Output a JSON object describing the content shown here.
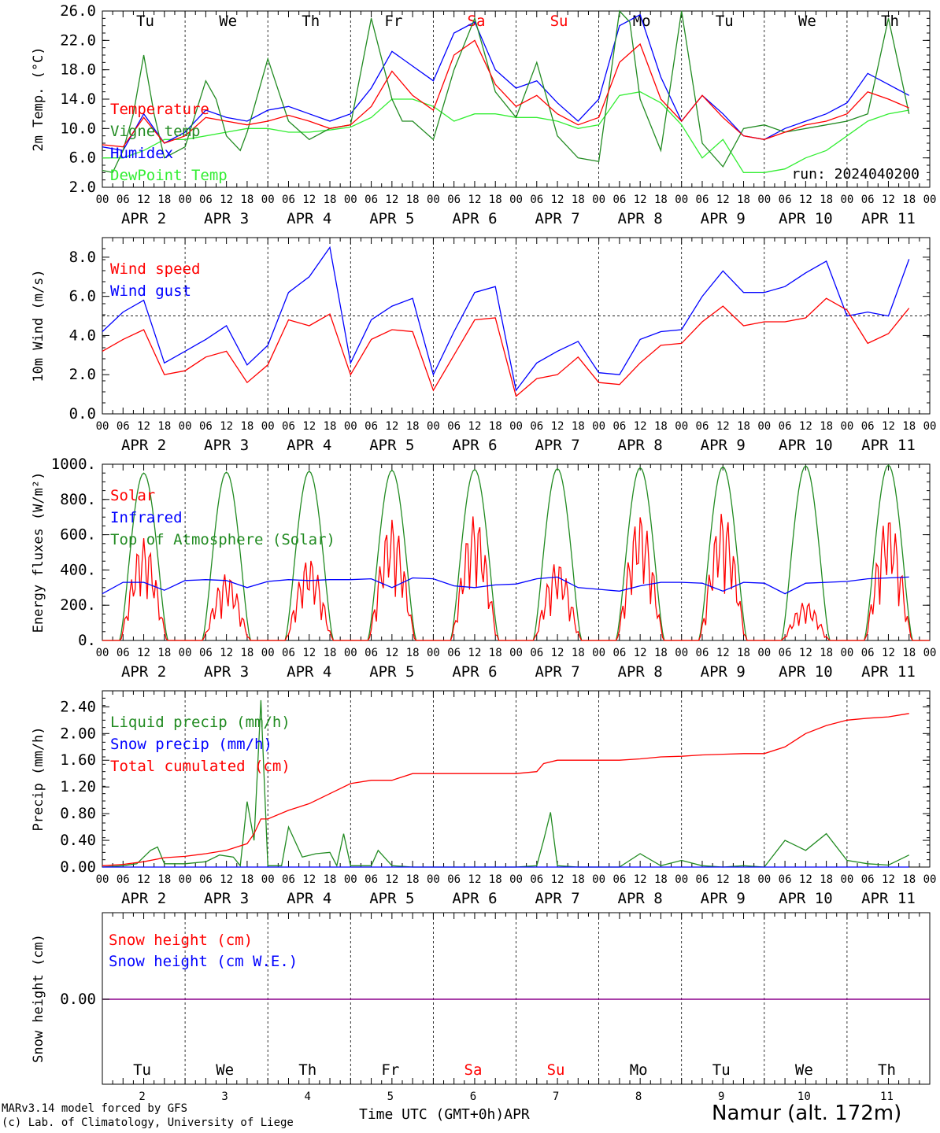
{
  "footer": {
    "model_line": "MARv3.14 model forced by GFS",
    "credit_line": "(c) Lab. of Climatology, University of Liege",
    "time_axis_label": "Time UTC (GMT+0h)",
    "month_label": "APR",
    "station": "Namur (alt. 172m)"
  },
  "days": [
    {
      "name": "Tu",
      "date": "2",
      "month_label": "APR  2",
      "weekend": false
    },
    {
      "name": "We",
      "date": "3",
      "month_label": "APR  3",
      "weekend": false
    },
    {
      "name": "Th",
      "date": "4",
      "month_label": "APR  4",
      "weekend": false
    },
    {
      "name": "Fr",
      "date": "5",
      "month_label": "APR  5",
      "weekend": false
    },
    {
      "name": "Sa",
      "date": "6",
      "month_label": "APR  6",
      "weekend": true
    },
    {
      "name": "Su",
      "date": "7",
      "month_label": "APR  7",
      "weekend": true
    },
    {
      "name": "Mo",
      "date": "8",
      "month_label": "APR  8",
      "weekend": false
    },
    {
      "name": "Tu",
      "date": "9",
      "month_label": "APR  9",
      "weekend": false
    },
    {
      "name": "We",
      "date": "10",
      "month_label": "APR 10",
      "weekend": false
    },
    {
      "name": "Th",
      "date": "11",
      "month_label": "APR 11",
      "weekend": false
    }
  ],
  "hour_ticks": [
    "00",
    "06",
    "12",
    "18"
  ],
  "colors": {
    "red": "#ff0000",
    "green": "#228b22",
    "blue": "#0000ff",
    "lightgreen": "#33ee33",
    "purple": "#8b008b",
    "weekend": "#ff0000"
  },
  "chart_data": [
    {
      "id": "temp",
      "type": "line",
      "ylabel": "2m Temp. (°C)",
      "ylim": [
        2.0,
        26.0
      ],
      "yticks": [
        "2.0",
        "6.0",
        "10.0",
        "14.0",
        "18.0",
        "22.0",
        "26.0"
      ],
      "run_label": "run: 2024040200",
      "x_unit": "hours since APR 2 00 UTC",
      "series": [
        {
          "name": "Temperature",
          "color": "red",
          "x": [
            0,
            6,
            12,
            18,
            24,
            30,
            36,
            42,
            48,
            54,
            60,
            66,
            72,
            78,
            84,
            90,
            96,
            102,
            108,
            114,
            120,
            126,
            132,
            138,
            144,
            150,
            156,
            162,
            168,
            174,
            180,
            186,
            192,
            198,
            204,
            210,
            216,
            222,
            228,
            234
          ],
          "values": [
            7.8,
            7.5,
            11.5,
            8.0,
            9.0,
            11.5,
            11.0,
            10.5,
            11.0,
            11.8,
            11.0,
            10.0,
            10.5,
            13.0,
            17.8,
            14.5,
            12.5,
            20.0,
            22.0,
            16.0,
            13.0,
            14.5,
            12.0,
            10.5,
            11.5,
            19.0,
            21.5,
            14.0,
            11.0,
            14.5,
            11.5,
            9.0,
            8.5,
            9.5,
            10.5,
            11.0,
            12.0,
            15.0,
            14.0,
            12.8
          ]
        },
        {
          "name": "Vigne temp",
          "color": "green",
          "x": [
            0,
            3,
            6,
            9,
            12,
            15,
            18,
            24,
            30,
            33,
            36,
            40,
            42,
            48,
            54,
            60,
            66,
            72,
            78,
            84,
            87,
            90,
            96,
            102,
            108,
            114,
            120,
            126,
            132,
            138,
            144,
            150,
            153,
            156,
            162,
            168,
            174,
            180,
            186,
            192,
            198,
            204,
            210,
            216,
            222,
            228,
            234
          ],
          "values": [
            4.3,
            4.0,
            7.0,
            12.0,
            20.0,
            12.0,
            6.0,
            7.5,
            16.5,
            14.0,
            9.0,
            7.0,
            9.5,
            19.5,
            11.0,
            8.5,
            10.0,
            10.5,
            25.0,
            14.0,
            11.0,
            11.0,
            8.5,
            18.0,
            25.0,
            15.0,
            11.5,
            19.0,
            9.0,
            6.0,
            5.5,
            26.0,
            24.5,
            14.0,
            7.0,
            26.0,
            8.0,
            4.8,
            10.0,
            10.5,
            9.5,
            10.0,
            10.5,
            11.0,
            12.0,
            25.0,
            12.0
          ]
        },
        {
          "name": "Humidex",
          "color": "blue",
          "x": [
            0,
            6,
            12,
            18,
            24,
            30,
            36,
            42,
            48,
            54,
            60,
            66,
            72,
            78,
            84,
            90,
            96,
            102,
            108,
            114,
            120,
            126,
            132,
            138,
            144,
            150,
            156,
            162,
            168,
            174,
            180,
            186,
            192,
            198,
            204,
            210,
            216,
            222,
            228,
            234
          ],
          "values": [
            7.5,
            7.0,
            12.0,
            8.0,
            9.5,
            12.5,
            11.5,
            11.0,
            12.5,
            13.0,
            12.0,
            11.0,
            12.0,
            15.5,
            20.5,
            18.5,
            16.5,
            23.0,
            24.5,
            18.0,
            15.5,
            16.5,
            13.5,
            11.0,
            14.0,
            24.0,
            25.5,
            17.0,
            11.0,
            14.5,
            12.0,
            9.0,
            8.5,
            10.0,
            11.0,
            12.0,
            13.5,
            17.5,
            16.0,
            14.5
          ]
        },
        {
          "name": "DewPoint Temp",
          "color": "lightgreen",
          "x": [
            0,
            6,
            12,
            18,
            24,
            30,
            36,
            42,
            48,
            54,
            60,
            66,
            72,
            78,
            84,
            90,
            96,
            102,
            108,
            114,
            120,
            126,
            132,
            138,
            144,
            150,
            156,
            162,
            168,
            174,
            180,
            186,
            192,
            198,
            204,
            210,
            216,
            222,
            228,
            234
          ],
          "values": [
            6.0,
            6.0,
            7.0,
            8.5,
            8.5,
            9.0,
            9.5,
            10.0,
            10.0,
            9.5,
            9.5,
            9.8,
            10.2,
            11.5,
            14.0,
            14.0,
            13.0,
            11.0,
            12.0,
            12.0,
            11.5,
            11.5,
            11.0,
            10.0,
            10.5,
            14.5,
            15.0,
            13.5,
            10.5,
            6.0,
            8.5,
            4.0,
            4.0,
            4.5,
            6.0,
            7.0,
            9.0,
            11.0,
            12.0,
            12.5
          ]
        }
      ]
    },
    {
      "id": "wind",
      "type": "line",
      "ylabel": "10m Wind (m/s)",
      "ylim": [
        0.0,
        9.0
      ],
      "yticks": [
        "0.0",
        "2.0",
        "4.0",
        "6.0",
        "8.0"
      ],
      "hline": 5.0,
      "x_unit": "hours since APR 2 00 UTC",
      "series": [
        {
          "name": "Wind speed",
          "color": "red",
          "x": [
            0,
            6,
            12,
            18,
            24,
            30,
            36,
            42,
            48,
            54,
            60,
            66,
            72,
            78,
            84,
            90,
            96,
            102,
            108,
            114,
            120,
            126,
            132,
            138,
            144,
            150,
            156,
            162,
            168,
            174,
            180,
            186,
            192,
            198,
            204,
            210,
            216,
            222,
            228,
            234
          ],
          "values": [
            3.2,
            3.8,
            4.3,
            2.0,
            2.2,
            2.9,
            3.2,
            1.6,
            2.5,
            4.8,
            4.5,
            5.1,
            2.0,
            3.8,
            4.3,
            4.2,
            1.2,
            3.0,
            4.8,
            4.9,
            0.9,
            1.8,
            2.0,
            2.9,
            1.6,
            1.5,
            2.6,
            3.5,
            3.6,
            4.7,
            5.5,
            4.5,
            4.7,
            4.7,
            4.9,
            5.9,
            5.3,
            3.6,
            4.1,
            5.4
          ]
        },
        {
          "name": "Wind gust",
          "color": "blue",
          "x": [
            0,
            6,
            12,
            18,
            24,
            30,
            36,
            42,
            48,
            54,
            60,
            66,
            72,
            78,
            84,
            90,
            96,
            102,
            108,
            114,
            120,
            126,
            132,
            138,
            144,
            150,
            156,
            162,
            168,
            174,
            180,
            186,
            192,
            198,
            204,
            210,
            216,
            222,
            228,
            234
          ],
          "values": [
            4.2,
            5.2,
            5.8,
            2.6,
            3.2,
            3.8,
            4.5,
            2.5,
            3.5,
            6.2,
            7.0,
            8.5,
            2.6,
            4.8,
            5.5,
            5.9,
            2.0,
            4.2,
            6.2,
            6.5,
            1.2,
            2.6,
            3.2,
            3.7,
            2.1,
            2.0,
            3.8,
            4.2,
            4.3,
            6.0,
            7.3,
            6.2,
            6.2,
            6.5,
            7.2,
            7.8,
            5.0,
            5.2,
            5.0,
            7.9
          ]
        }
      ]
    },
    {
      "id": "energy",
      "type": "line",
      "ylabel": "Energy fluxes (W/m²)",
      "ylim": [
        0,
        1000
      ],
      "yticks": [
        "0.",
        "200.",
        "400.",
        "600.",
        "800.",
        "1000."
      ],
      "x_unit": "hours since APR 2 00 UTC",
      "series": [
        {
          "name": "Solar",
          "color": "red",
          "peaks": [
            580,
            380,
            470,
            690,
            710,
            450,
            720,
            730,
            220,
            710
          ]
        },
        {
          "name": "Infrared",
          "color": "blue",
          "x": [
            0,
            6,
            12,
            18,
            24,
            30,
            36,
            42,
            48,
            54,
            60,
            66,
            72,
            78,
            84,
            90,
            96,
            102,
            108,
            114,
            120,
            126,
            132,
            138,
            144,
            150,
            156,
            162,
            168,
            174,
            180,
            186,
            192,
            198,
            204,
            210,
            216,
            222,
            228,
            234
          ],
          "values": [
            265,
            330,
            330,
            285,
            340,
            345,
            340,
            300,
            335,
            345,
            340,
            345,
            345,
            350,
            300,
            355,
            350,
            310,
            300,
            315,
            320,
            350,
            360,
            300,
            290,
            280,
            310,
            330,
            330,
            325,
            280,
            330,
            325,
            265,
            325,
            330,
            335,
            350,
            355,
            360
          ]
        },
        {
          "name": "Top of Atmosphere (Solar)",
          "color": "green",
          "peaks": [
            950,
            955,
            960,
            965,
            970,
            975,
            980,
            985,
            990,
            995
          ]
        }
      ]
    },
    {
      "id": "precip",
      "type": "line",
      "ylabel": "Precip (mm/h)",
      "ylim": [
        0.0,
        2.64
      ],
      "yticks": [
        "0.00",
        "0.40",
        "0.80",
        "1.20",
        "1.60",
        "2.00",
        "2.40"
      ],
      "x_unit": "hours since APR 2 00 UTC",
      "series": [
        {
          "name": "Liquid precip (mm/h)",
          "color": "green",
          "x": [
            0,
            6,
            10,
            14,
            16,
            18,
            24,
            30,
            34,
            38,
            40,
            42,
            44,
            46,
            48,
            52,
            54,
            58,
            62,
            66,
            68,
            70,
            72,
            78,
            80,
            84,
            90,
            96,
            102,
            108,
            114,
            120,
            126,
            128,
            130,
            132,
            138,
            144,
            150,
            156,
            162,
            168,
            174,
            180,
            186,
            192,
            198,
            204,
            210,
            216,
            222,
            228,
            234
          ],
          "values": [
            0,
            0.02,
            0.05,
            0.25,
            0.3,
            0.05,
            0.05,
            0.08,
            0.18,
            0.15,
            0.02,
            0.98,
            0.4,
            2.5,
            0.02,
            0.02,
            0.6,
            0.15,
            0.2,
            0.22,
            0.02,
            0.5,
            0.02,
            0.02,
            0.25,
            0.02,
            0.0,
            0.0,
            0.0,
            0.0,
            0.0,
            0.0,
            0.02,
            0.4,
            0.82,
            0.02,
            0.0,
            0.0,
            0.0,
            0.2,
            0.02,
            0.1,
            0.02,
            0.0,
            0.02,
            0.0,
            0.4,
            0.25,
            0.5,
            0.1,
            0.05,
            0.03,
            0.18
          ]
        },
        {
          "name": "Snow precip (mm/h)",
          "color": "blue",
          "x": [
            0,
            234
          ],
          "values": [
            0,
            0
          ]
        },
        {
          "name": "Total cumulated (cm)",
          "color": "red",
          "x": [
            0,
            6,
            12,
            18,
            24,
            30,
            36,
            42,
            44,
            46,
            48,
            54,
            60,
            66,
            72,
            78,
            84,
            90,
            96,
            102,
            108,
            114,
            120,
            126,
            128,
            132,
            138,
            144,
            150,
            156,
            162,
            168,
            174,
            180,
            186,
            192,
            198,
            204,
            210,
            216,
            222,
            228,
            234
          ],
          "values": [
            0.02,
            0.04,
            0.08,
            0.14,
            0.16,
            0.2,
            0.25,
            0.35,
            0.5,
            0.72,
            0.72,
            0.85,
            0.95,
            1.1,
            1.25,
            1.3,
            1.3,
            1.4,
            1.4,
            1.4,
            1.4,
            1.4,
            1.4,
            1.43,
            1.55,
            1.6,
            1.6,
            1.6,
            1.6,
            1.62,
            1.65,
            1.66,
            1.68,
            1.69,
            1.7,
            1.7,
            1.8,
            2.0,
            2.12,
            2.2,
            2.23,
            2.25,
            2.3
          ]
        }
      ]
    },
    {
      "id": "snow",
      "type": "line",
      "ylabel": "Snow height (cm)",
      "yticks": [
        "0.00"
      ],
      "x_unit": "hours since APR 2 00 UTC",
      "series": [
        {
          "name": "Snow height (cm)",
          "color": "red",
          "x": [
            0,
            234
          ],
          "values": [
            0,
            0
          ]
        },
        {
          "name": "Snow height (cm W.E.)",
          "color": "blue",
          "x": [
            0,
            234
          ],
          "values": [
            0,
            0
          ]
        }
      ]
    }
  ]
}
